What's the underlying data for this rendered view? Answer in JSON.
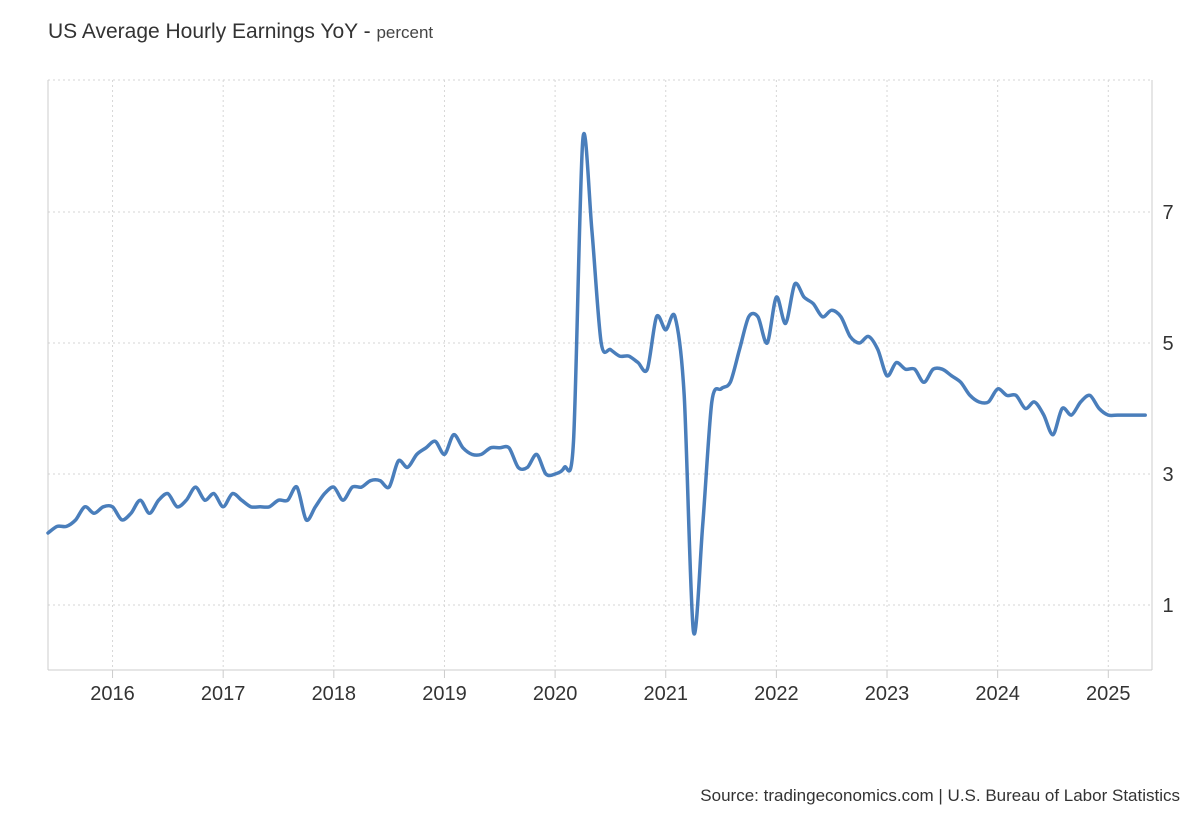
{
  "chart_data": {
    "type": "line",
    "title": "US Average Hourly Earnings YoY",
    "unit": "percent",
    "source": "Source: tradingeconomics.com | U.S. Bureau of Labor Statistics",
    "xlabel": "",
    "ylabel": "",
    "x_ticks": [
      "2016",
      "2017",
      "2018",
      "2019",
      "2020",
      "2021",
      "2022",
      "2023",
      "2024",
      "2025"
    ],
    "y_ticks": [
      "1",
      "3",
      "5",
      "7"
    ],
    "ylim": [
      0,
      9
    ],
    "grid": true,
    "color": "#4a7ebb",
    "series": [
      {
        "x": [
          "2015-06",
          "2015-07",
          "2015-08",
          "2015-09",
          "2015-10",
          "2015-11",
          "2015-12",
          "2016-01",
          "2016-02",
          "2016-03",
          "2016-04",
          "2016-05",
          "2016-06",
          "2016-07",
          "2016-08",
          "2016-09",
          "2016-10",
          "2016-11",
          "2016-12",
          "2017-01",
          "2017-02",
          "2017-03",
          "2017-04",
          "2017-05",
          "2017-06",
          "2017-07",
          "2017-08",
          "2017-09",
          "2017-10",
          "2017-11",
          "2017-12",
          "2018-01",
          "2018-02",
          "2018-03",
          "2018-04",
          "2018-05",
          "2018-06",
          "2018-07",
          "2018-08",
          "2018-09",
          "2018-10",
          "2018-11",
          "2018-12",
          "2019-01",
          "2019-02",
          "2019-03",
          "2019-04",
          "2019-05",
          "2019-06",
          "2019-07",
          "2019-08",
          "2019-09",
          "2019-10",
          "2019-11",
          "2019-12",
          "2020-01",
          "2020-02",
          "2020-03",
          "2020-04",
          "2020-05",
          "2020-06",
          "2020-07",
          "2020-08",
          "2020-09",
          "2020-10",
          "2020-11",
          "2020-12",
          "2021-01",
          "2021-02",
          "2021-03",
          "2021-04",
          "2021-05",
          "2021-06",
          "2021-07",
          "2021-08",
          "2021-09",
          "2021-10",
          "2021-11",
          "2021-12",
          "2022-01",
          "2022-02",
          "2022-03",
          "2022-04",
          "2022-05",
          "2022-06",
          "2022-07",
          "2022-08",
          "2022-09",
          "2022-10",
          "2022-11",
          "2022-12",
          "2023-01",
          "2023-02",
          "2023-03",
          "2023-04",
          "2023-05",
          "2023-06",
          "2023-07",
          "2023-08",
          "2023-09",
          "2023-10",
          "2023-11",
          "2023-12",
          "2024-01",
          "2024-02",
          "2024-03",
          "2024-04",
          "2024-05",
          "2024-06",
          "2024-07",
          "2024-08",
          "2024-09",
          "2024-10",
          "2024-11",
          "2024-12",
          "2025-01",
          "2025-02",
          "2025-03",
          "2025-04",
          "2025-05"
        ],
        "values": [
          2.1,
          2.2,
          2.2,
          2.3,
          2.5,
          2.4,
          2.5,
          2.5,
          2.3,
          2.4,
          2.6,
          2.4,
          2.6,
          2.7,
          2.5,
          2.6,
          2.8,
          2.6,
          2.7,
          2.5,
          2.7,
          2.6,
          2.5,
          2.5,
          2.5,
          2.6,
          2.6,
          2.8,
          2.3,
          2.5,
          2.7,
          2.8,
          2.6,
          2.8,
          2.8,
          2.9,
          2.9,
          2.8,
          3.2,
          3.1,
          3.3,
          3.4,
          3.5,
          3.3,
          3.6,
          3.4,
          3.3,
          3.3,
          3.4,
          3.4,
          3.4,
          3.1,
          3.1,
          3.3,
          3.0,
          3.0,
          3.1,
          3.5,
          8.1,
          6.7,
          5.0,
          4.9,
          4.8,
          4.8,
          4.7,
          4.6,
          5.4,
          5.2,
          5.4,
          4.2,
          0.6,
          2.2,
          4.1,
          4.3,
          4.4,
          4.9,
          5.4,
          5.4,
          5.0,
          5.7,
          5.3,
          5.9,
          5.7,
          5.6,
          5.4,
          5.5,
          5.4,
          5.1,
          5.0,
          5.1,
          4.9,
          4.5,
          4.7,
          4.6,
          4.6,
          4.4,
          4.6,
          4.6,
          4.5,
          4.4,
          4.2,
          4.1,
          4.1,
          4.3,
          4.2,
          4.2,
          4.0,
          4.1,
          3.9,
          3.6,
          4.0,
          3.9,
          4.1,
          4.2,
          4.0,
          3.9,
          3.9,
          3.9,
          3.9,
          3.9
        ]
      }
    ]
  }
}
